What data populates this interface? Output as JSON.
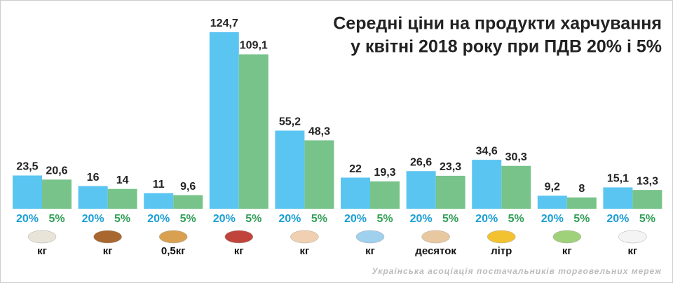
{
  "chart_data": {
    "type": "bar",
    "title": "Середні ціни на продукти харчування",
    "subtitle": "у квітні 2018 року при ПДВ 20% і 5%",
    "categories": [
      "кг",
      "кг",
      "0,5кг",
      "кг",
      "кг",
      "кг",
      "десяток",
      "літр",
      "кг",
      "кг"
    ],
    "series": [
      {
        "name": "20%",
        "color": "#5bc5f2",
        "values": [
          23.5,
          16,
          11,
          124.7,
          55.2,
          22,
          26.6,
          34.6,
          9.2,
          15.1
        ],
        "value_labels": [
          "23,5",
          "16",
          "11",
          "124,7",
          "55,2",
          "22",
          "26,6",
          "34,6",
          "9,2",
          "15,1"
        ]
      },
      {
        "name": "5%",
        "color": "#77c38a",
        "values": [
          20.6,
          14,
          9.6,
          109.1,
          48.3,
          19.3,
          23.3,
          30.3,
          8,
          13.3
        ],
        "value_labels": [
          "20,6",
          "14",
          "9,6",
          "109,1",
          "48,3",
          "19,3",
          "23,3",
          "30,3",
          "8",
          "13,3"
        ]
      }
    ],
    "source": "Українська асоціація постачальників торговельних мереж"
  }
}
